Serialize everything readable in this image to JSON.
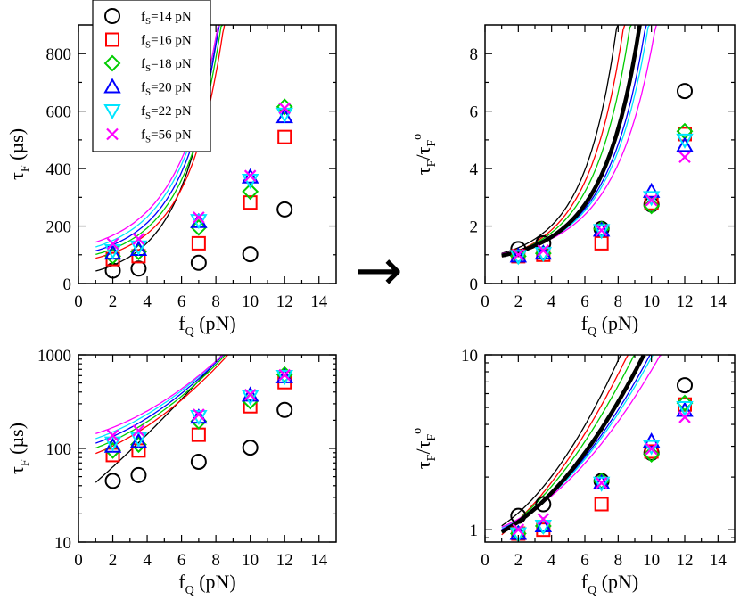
{
  "legend": {
    "prefix": "f",
    "sub": "S",
    "entries": [
      {
        "label": "=14 pN"
      },
      {
        "label": "=16 pN"
      },
      {
        "label": "=18 pN"
      },
      {
        "label": "=20 pN"
      },
      {
        "label": "=22 pN"
      },
      {
        "label": "=56 pN"
      }
    ]
  },
  "arrow": {
    "symbol": "→"
  },
  "chart_data": [
    {
      "id": "tl",
      "type": "scatter",
      "title": "",
      "xlabel": {
        "main": "f",
        "sub": "Q",
        "rest": " (pN)"
      },
      "ylabel": {
        "main": "τ",
        "sub": "F",
        "sup": "",
        "rest": " (µs)"
      },
      "xlim": [
        0,
        15
      ],
      "ylim": [
        0,
        900
      ],
      "yscale": "linear",
      "xticks": [
        0,
        2,
        4,
        6,
        8,
        10,
        12,
        14
      ],
      "yticks": [
        0,
        200,
        400,
        600,
        800
      ],
      "series": [
        {
          "name": "fS=14 pN",
          "color": "#000000",
          "marker": "circle",
          "x": [
            2,
            3.5,
            7,
            10,
            12
          ],
          "y": [
            45,
            52,
            72,
            102,
            258
          ],
          "fit": [
            30,
            0.36,
            0.0071
          ]
        },
        {
          "name": "fS=16 pN",
          "color": "#ff0000",
          "marker": "square",
          "x": [
            2,
            3.5,
            7,
            10,
            12
          ],
          "y": [
            85,
            95,
            140,
            282,
            510
          ],
          "fit": [
            76,
            0.13,
            0.0191
          ]
        },
        {
          "name": "fS=18 pN",
          "color": "#00cc00",
          "marker": "diamond",
          "x": [
            2,
            3.5,
            7,
            10,
            12
          ],
          "y": [
            95,
            110,
            195,
            320,
            615
          ],
          "fit": [
            88,
            0.12,
            0.0192
          ]
        },
        {
          "name": "fS=20 pN",
          "color": "#0000ff",
          "marker": "triangle-up",
          "x": [
            2,
            3.5,
            7,
            10,
            12
          ],
          "y": [
            105,
            118,
            215,
            370,
            580
          ],
          "fit": [
            100,
            0.11,
            0.0193
          ]
        },
        {
          "name": "fS=22 pN",
          "color": "#00e5ff",
          "marker": "triangle-down",
          "x": [
            2,
            3.5,
            7,
            10,
            12
          ],
          "y": [
            115,
            128,
            220,
            360,
            590
          ],
          "fit": [
            112,
            0.11,
            0.018
          ]
        },
        {
          "name": "fS=56 pN",
          "color": "#ff00ff",
          "marker": "x",
          "x": [
            2,
            3.5,
            7,
            10,
            12
          ],
          "y": [
            138,
            155,
            230,
            375,
            610
          ],
          "fit": [
            128,
            0.1,
            0.0172
          ]
        }
      ]
    },
    {
      "id": "tr",
      "type": "scatter",
      "title": "",
      "xlabel": {
        "main": "f",
        "sub": "Q",
        "rest": " (pN)"
      },
      "ylabel": {
        "main": "τ",
        "sub": "F",
        "slash": "/τ",
        "sub2": "F",
        "sup": "o"
      },
      "xlim": [
        0,
        15
      ],
      "ylim": [
        0,
        9
      ],
      "yscale": "linear",
      "xticks": [
        0,
        2,
        4,
        6,
        8,
        10,
        12,
        14
      ],
      "yticks": [
        0,
        2,
        4,
        6,
        8
      ],
      "master_fit": [
        0.88,
        0.08,
        0.0183
      ],
      "series": [
        {
          "name": "fS=14 pN",
          "color": "#000000",
          "marker": "circle",
          "x": [
            2,
            3.5,
            7,
            10,
            12
          ],
          "y": [
            1.2,
            1.4,
            1.9,
            2.75,
            6.7
          ],
          "fit": [
            0.93,
            0.1,
            0.0235
          ]
        },
        {
          "name": "fS=16 pN",
          "color": "#ff0000",
          "marker": "square",
          "x": [
            2,
            3.5,
            7,
            10,
            12
          ],
          "y": [
            0.95,
            1.0,
            1.4,
            2.8,
            5.2
          ],
          "fit": [
            0.8,
            0.14,
            0.018
          ]
        },
        {
          "name": "fS=18 pN",
          "color": "#00cc00",
          "marker": "diamond",
          "x": [
            2,
            3.5,
            7,
            10,
            12
          ],
          "y": [
            0.95,
            1.05,
            1.9,
            2.7,
            5.3
          ],
          "fit": [
            0.85,
            0.11,
            0.0184
          ]
        },
        {
          "name": "fS=20 pN",
          "color": "#0000ff",
          "marker": "triangle-up",
          "x": [
            2,
            3.5,
            7,
            10,
            12
          ],
          "y": [
            0.95,
            1.05,
            1.85,
            3.2,
            4.8
          ],
          "fit": [
            0.92,
            0.07,
            0.0172
          ]
        },
        {
          "name": "fS=22 pN",
          "color": "#00e5ff",
          "marker": "triangle-down",
          "x": [
            2,
            3.5,
            7,
            10,
            12
          ],
          "y": [
            0.95,
            1.05,
            1.85,
            3.0,
            5.0
          ],
          "fit": [
            0.95,
            0.06,
            0.0172
          ]
        },
        {
          "name": "fS=56 pN",
          "color": "#ff00ff",
          "marker": "x",
          "x": [
            2,
            3.5,
            7,
            10,
            12
          ],
          "y": [
            1.0,
            1.15,
            1.85,
            2.9,
            4.4
          ],
          "fit": [
            0.96,
            0.06,
            0.0154
          ]
        }
      ]
    },
    {
      "id": "bl",
      "type": "scatter",
      "title": "",
      "xlabel": {
        "main": "f",
        "sub": "Q",
        "rest": " (pN)"
      },
      "ylabel": {
        "main": "τ",
        "sub": "F",
        "sup": "",
        "rest": " (µs)"
      },
      "xlim": [
        0,
        15
      ],
      "ylim": [
        10,
        1000
      ],
      "yscale": "log",
      "xticks": [
        0,
        2,
        4,
        6,
        8,
        10,
        12,
        14
      ],
      "yticks": [
        10,
        100,
        1000
      ],
      "yticklabels": [
        "10",
        "100",
        "1000"
      ],
      "series_from": "tl"
    },
    {
      "id": "br",
      "type": "scatter",
      "title": "",
      "xlabel": {
        "main": "f",
        "sub": "Q",
        "rest": " (pN)"
      },
      "ylabel": {
        "main": "τ",
        "sub": "F",
        "slash": "/τ",
        "sub2": "F",
        "sup": "o"
      },
      "xlim": [
        0,
        15
      ],
      "ylim": [
        0.85,
        10
      ],
      "yscale": "log",
      "xticks": [
        0,
        2,
        4,
        6,
        8,
        10,
        12,
        14
      ],
      "yticks": [
        1,
        10
      ],
      "yticklabels": [
        "1",
        "10"
      ],
      "series_from": "tr"
    }
  ]
}
